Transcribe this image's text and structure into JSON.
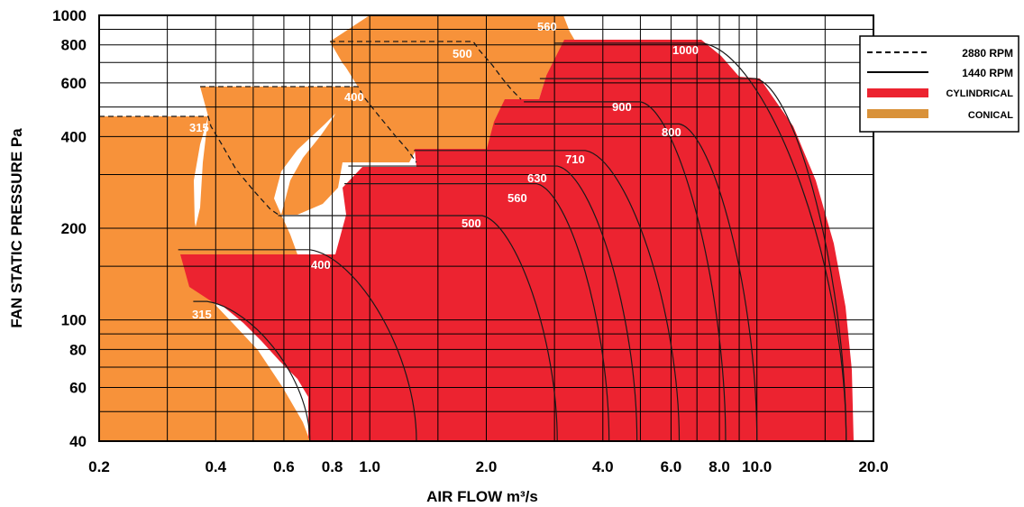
{
  "chart_data": {
    "type": "area",
    "xlabel": "AIR FLOW m³/s",
    "ylabel": "FAN STATIC PRESSURE Pa",
    "xscale": "log",
    "yscale": "log",
    "xlim": [
      0.2,
      20.0
    ],
    "ylim": [
      40,
      1000
    ],
    "x_ticks": [
      {
        "value": 0.2,
        "label": "0.2"
      },
      {
        "value": 0.4,
        "label": "0.4"
      },
      {
        "value": 0.6,
        "label": "0.6"
      },
      {
        "value": 0.8,
        "label": "0.8"
      },
      {
        "value": 1.0,
        "label": "1.0"
      },
      {
        "value": 2.0,
        "label": "2.0"
      },
      {
        "value": 4.0,
        "label": "4.0"
      },
      {
        "value": 6.0,
        "label": "6.0"
      },
      {
        "value": 8.0,
        "label": "8.0"
      },
      {
        "value": 10.0,
        "label": "10.0"
      },
      {
        "value": 20.0,
        "label": "20.0"
      }
    ],
    "y_ticks": [
      {
        "value": 40,
        "label": "40"
      },
      {
        "value": 60,
        "label": "60"
      },
      {
        "value": 80,
        "label": "80"
      },
      {
        "value": 100,
        "label": "100"
      },
      {
        "value": 200,
        "label": "200"
      },
      {
        "value": 400,
        "label": "400"
      },
      {
        "value": 600,
        "label": "600"
      },
      {
        "value": 800,
        "label": "800"
      },
      {
        "value": 1000,
        "label": "1000"
      }
    ],
    "grid": true,
    "legend_position": "top-right",
    "legend": [
      {
        "label": "2880 RPM",
        "style": "dashed"
      },
      {
        "label": "1440 RPM",
        "style": "solid"
      },
      {
        "label": "CYLINDRICAL",
        "style": "swatch",
        "color": "#ec2330"
      },
      {
        "label": "CONICAL",
        "style": "swatch",
        "color": "#d9923a"
      }
    ],
    "colors": {
      "conical": "#f7923a",
      "cylindrical": "#ec2330",
      "legend_conical": "#d9923a"
    },
    "conical": [
      {
        "label": "315",
        "top": 470,
        "edge_top_x": 0.39,
        "edge_bottom_x": 0.68,
        "left_x": 0.2
      },
      {
        "label": "400",
        "top": 580,
        "edge_top_x": 0.4,
        "edge_bottom_x": 0.68,
        "left_x": 0.37
      },
      {
        "label": "500",
        "top": 820,
        "edge_top_x": 0.85,
        "edge_bottom_x": 1.33,
        "left_x": 0.79
      },
      {
        "label": "560",
        "top": 1000,
        "edge_top_x": 3.3,
        "edge_bottom_x": 2.1,
        "left_x": 0.95
      }
    ],
    "cylindrical": [
      {
        "label": "315",
        "top": 115,
        "x_top_left": 0.35,
        "x_flat_end": 0.38,
        "x_bottom": 0.7
      },
      {
        "label": "400",
        "top": 170,
        "x_top_left": 0.32,
        "x_flat_end": 0.7,
        "x_bottom": 1.32
      },
      {
        "label": "500",
        "top": 220,
        "x_top_left": 0.58,
        "x_flat_end": 1.95,
        "x_bottom": 3.05
      },
      {
        "label": "560",
        "top": 280,
        "x_top_left": 0.86,
        "x_flat_end": 2.7,
        "x_bottom": 4.15
      },
      {
        "label": "630",
        "top": 320,
        "x_top_left": 0.88,
        "x_flat_end": 3.05,
        "x_bottom": 4.9
      },
      {
        "label": "710",
        "top": 360,
        "x_top_left": 1.3,
        "x_flat_end": 3.6,
        "x_bottom": 6.3
      },
      {
        "label": "800",
        "top": 440,
        "x_top_left": 2.1,
        "x_flat_end": 6.3,
        "x_bottom": 10.0
      },
      {
        "label": "900",
        "top": 520,
        "x_top_left": 2.5,
        "x_flat_end": 5.0,
        "x_bottom": 8.3
      },
      {
        "label": "1000",
        "top": 810,
        "x_top_left": 3.0,
        "x_flat_end": 7.2,
        "x_bottom": 17.0
      },
      {
        "label": "",
        "top": 620,
        "x_top_left": 2.75,
        "x_flat_end": 9.9,
        "x_bottom": 17.0
      }
    ],
    "dashed_boundary": [
      {
        "x": 0.2,
        "y": 470
      },
      {
        "x": 0.395,
        "y": 470
      },
      {
        "x": 0.4,
        "y": 440
      },
      {
        "x": 0.47,
        "y": 340
      },
      {
        "x": 0.56,
        "y": 260
      },
      {
        "x": 0.6,
        "y": 225
      },
      {
        "x": 0.37,
        "y": 580
      },
      {
        "x": 0.93,
        "y": 580
      },
      {
        "x": 1.0,
        "y": 500
      },
      {
        "x": 1.15,
        "y": 390
      },
      {
        "x": 1.3,
        "y": 340
      },
      {
        "x": 0.79,
        "y": 820
      },
      {
        "x": 1.86,
        "y": 820
      },
      {
        "x": 2.2,
        "y": 650
      },
      {
        "x": 2.6,
        "y": 540
      }
    ]
  }
}
